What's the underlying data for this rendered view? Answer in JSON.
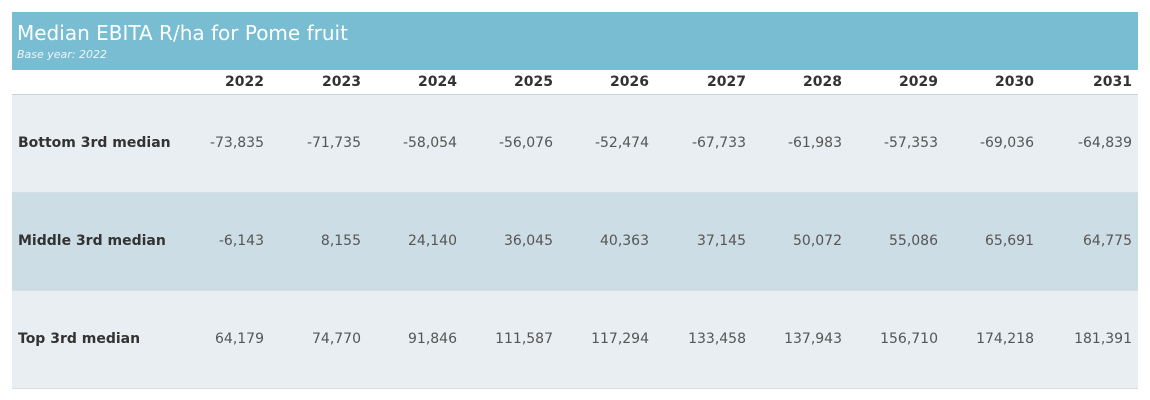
{
  "chart_data": {
    "type": "table",
    "title": "Median EBITA R/ha for Pome fruit",
    "subtitle": "Base year: 2022",
    "columns": [
      "2022",
      "2023",
      "2024",
      "2025",
      "2026",
      "2027",
      "2028",
      "2029",
      "2030",
      "2031"
    ],
    "rows": [
      {
        "label": "Bottom 3rd median",
        "values": [
          "-73,835",
          "-71,735",
          "-58,054",
          "-56,076",
          "-52,474",
          "-67,733",
          "-61,983",
          "-57,353",
          "-69,036",
          "-64,839"
        ]
      },
      {
        "label": "Middle 3rd median",
        "values": [
          "-6,143",
          "8,155",
          "24,140",
          "36,045",
          "40,363",
          "37,145",
          "50,072",
          "55,086",
          "65,691",
          "64,775"
        ]
      },
      {
        "label": "Top 3rd median",
        "values": [
          "64,179",
          "74,770",
          "91,846",
          "111,587",
          "117,294",
          "133,458",
          "137,943",
          "156,710",
          "174,218",
          "181,391"
        ]
      }
    ],
    "colors": {
      "header": "#79bdd2",
      "row_light": "#e8eef2",
      "row_dark": "#cddde5"
    }
  }
}
